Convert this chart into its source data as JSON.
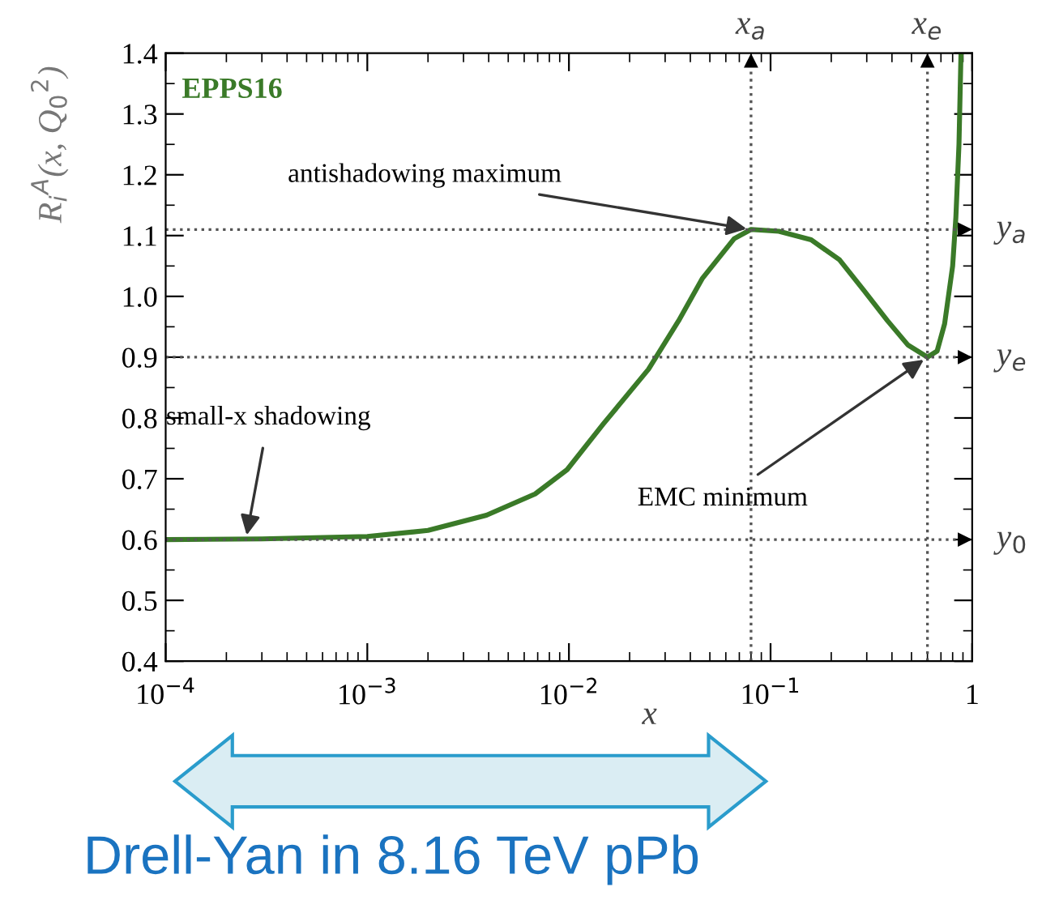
{
  "chart_data": {
    "type": "line",
    "ylabel": "R$_{i}$$^{A}$(x, Q$_{0}$$^{2}$)",
    "xlabel": "x",
    "log": "x",
    "series": [
      {
        "name": "EPPS16",
        "color": "#3a7a28",
        "x": [
          0.0001,
          0.0003,
          0.001,
          0.002,
          0.0039,
          0.0068,
          0.0098,
          0.0148,
          0.0248,
          0.035,
          0.046,
          0.066,
          0.08,
          0.11,
          0.159,
          0.22,
          0.29,
          0.38,
          0.48,
          0.6,
          0.67,
          0.73,
          0.8,
          0.83,
          0.86,
          0.88
        ],
        "values": [
          0.6,
          0.601,
          0.605,
          0.615,
          0.64,
          0.675,
          0.715,
          0.79,
          0.88,
          0.96,
          1.03,
          1.095,
          1.11,
          1.107,
          1.093,
          1.06,
          1.01,
          0.96,
          0.92,
          0.9,
          0.91,
          0.955,
          1.05,
          1.13,
          1.25,
          1.4
        ]
      }
    ],
    "xlim": [
      0.0001,
      1
    ],
    "ylim": [
      0.4,
      1.4
    ],
    "xticks": [
      {
        "value": 0.0001,
        "label": "10$^{−4}$"
      },
      {
        "value": 0.001,
        "label": "10$^{−3}$"
      },
      {
        "value": 0.01,
        "label": "10$^{−2}$"
      },
      {
        "value": 0.1,
        "label": "10$^{−1}$"
      },
      1
    ],
    "yticks": [
      {
        "value": 0.4,
        "label": "0.4"
      },
      {
        "value": 0.5,
        "label": "0.5"
      },
      {
        "value": 0.6,
        "label": "0.6"
      },
      {
        "value": 0.7,
        "label": "0.7"
      },
      {
        "value": 0.8,
        "label": "0.8"
      },
      {
        "value": 0.9,
        "label": "0.9"
      },
      {
        "value": 1.0,
        "label": "1.0"
      },
      {
        "value": 1.1,
        "label": "1.1"
      },
      {
        "value": 1.2,
        "label": "1.2"
      },
      {
        "value": 1.3,
        "label": "1.3"
      },
      {
        "value": 1.4,
        "label": "1.4"
      }
    ],
    "ref_lines": [
      {
        "axis": "y",
        "value": 0.6,
        "label": "y$_{0}$",
        "line_style": "dotted"
      },
      {
        "axis": "y",
        "value": 1.11,
        "label": "y$_{a}$",
        "line_style": "dotted"
      },
      {
        "axis": "y",
        "value": 0.9,
        "label": "y$_{e}$",
        "line_style": "dotted"
      },
      {
        "axis": "x",
        "value": 0.08,
        "label": "x$_{a}$",
        "line_style": "dotted"
      },
      {
        "axis": "x",
        "value": 0.6,
        "label": "x$_{e}$",
        "line_style": "dotted"
      }
    ],
    "annotations": [
      {
        "text": "antishadowing maximum",
        "x": 0.08,
        "y": 1.11
      },
      {
        "text": "EMC minimum",
        "x": 0.6,
        "y": 0.9
      },
      {
        "text": "small-x shadowing",
        "x": 0.00025,
        "y": 0.6
      },
      "Drell-Yan in 8.16 TeV pPb"
    ],
    "grid": false,
    "legend": false,
    "marker": "none",
    "line_style": "solid"
  }
}
